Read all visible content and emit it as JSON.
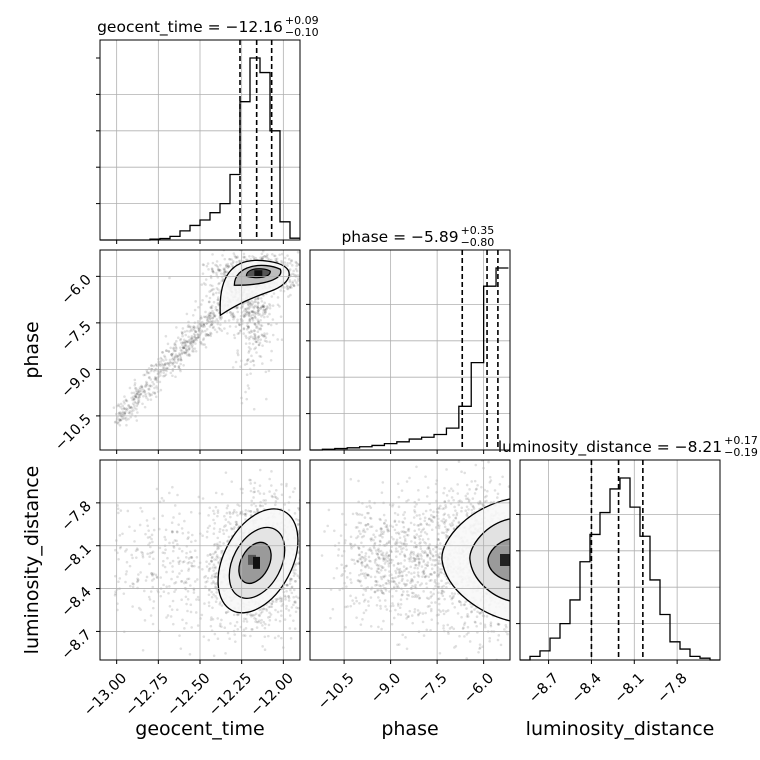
{
  "chart_data": {
    "type": "corner",
    "parameters": [
      "geocent_time",
      "phase",
      "luminosity_distance"
    ],
    "ranges": {
      "geocent_time": [
        -13.1,
        -11.9
      ],
      "phase": [
        -11.6,
        -5.15
      ],
      "luminosity_distance": [
        -8.9,
        -7.5
      ]
    },
    "ticks": {
      "geocent_time": [
        -13.0,
        -12.75,
        -12.5,
        -12.25,
        -12.0
      ],
      "geocent_time_labels": [
        "−13.00",
        "−12.75",
        "−12.50",
        "−12.25",
        "−12.00"
      ],
      "phase": [
        -10.5,
        -9.0,
        -7.5,
        -6.0
      ],
      "phase_labels": [
        "−10.5",
        "−9.0",
        "−7.5",
        "−6.0"
      ],
      "luminosity_distance": [
        -8.7,
        -8.4,
        -8.1,
        -7.8
      ],
      "luminosity_distance_labels": [
        "−8.7",
        "−8.4",
        "−8.1",
        "−7.8"
      ]
    },
    "titles": [
      {
        "param": "geocent_time",
        "text": "geocent_time = −12.16",
        "sup": "+0.09",
        "sub": "−0.10",
        "median": -12.16,
        "lo": -12.26,
        "hi": -12.07
      },
      {
        "param": "phase",
        "text": "phase = −5.89",
        "sup": "+0.35",
        "sub": "−0.80",
        "median": -5.89,
        "lo": -6.69,
        "hi": -5.54
      },
      {
        "param": "luminosity_distance",
        "text": "luminosity_distance = −8.21",
        "sup": "+0.17",
        "sub": "−0.19",
        "median": -8.21,
        "lo": -8.4,
        "hi": -8.04
      }
    ],
    "histograms": {
      "geocent_time": {
        "bin_edges": [
          -13.1,
          -13.04,
          -12.98,
          -12.92,
          -12.86,
          -12.8,
          -12.74,
          -12.68,
          -12.62,
          -12.56,
          -12.5,
          -12.44,
          -12.38,
          -12.32,
          -12.26,
          -12.2,
          -12.14,
          -12.08,
          -12.02,
          -11.96,
          -11.9
        ],
        "counts": [
          0,
          0,
          0,
          0,
          0,
          0.005,
          0.008,
          0.02,
          0.05,
          0.08,
          0.11,
          0.15,
          0.2,
          0.36,
          0.76,
          1.0,
          0.92,
          0.6,
          0.1,
          0.01
        ]
      },
      "phase": {
        "bin_edges": [
          -11.6,
          -11.2,
          -10.8,
          -10.4,
          -10.0,
          -9.6,
          -9.2,
          -8.8,
          -8.4,
          -8.0,
          -7.6,
          -7.2,
          -6.8,
          -6.4,
          -6.0,
          -5.6,
          -5.2
        ],
        "counts": [
          0,
          0.004,
          0.008,
          0.012,
          0.018,
          0.025,
          0.035,
          0.045,
          0.06,
          0.07,
          0.085,
          0.12,
          0.24,
          0.48,
          0.9,
          1.0
        ]
      },
      "luminosity_distance": {
        "bin_edges": [
          -8.9,
          -8.83,
          -8.76,
          -8.69,
          -8.62,
          -8.55,
          -8.48,
          -8.41,
          -8.34,
          -8.27,
          -8.2,
          -8.13,
          -8.06,
          -7.99,
          -7.92,
          -7.85,
          -7.78,
          -7.71,
          -7.64,
          -7.57,
          -7.5
        ],
        "counts": [
          0,
          0.02,
          0.05,
          0.12,
          0.2,
          0.33,
          0.54,
          0.69,
          0.81,
          0.94,
          1.0,
          0.84,
          0.68,
          0.44,
          0.25,
          0.1,
          0.06,
          0.02,
          0.01,
          0
        ]
      }
    },
    "credible_intervals": {
      "geocent_time": [
        -12.26,
        -12.16,
        -12.07
      ],
      "phase": [
        -6.69,
        -5.89,
        -5.54
      ],
      "luminosity_distance": [
        -8.4,
        -8.21,
        -8.04
      ]
    },
    "scatter_2d": {
      "geocent_time_vs_phase": {
        "x_center": -12.15,
        "y_center": -5.9
      },
      "geocent_time_vs_luminosity_distance": {
        "x_center": -12.17,
        "y_center": -8.2
      },
      "phase_vs_luminosity_distance": {
        "x_center": -5.85,
        "y_center": -8.2
      }
    },
    "xlabels": [
      "geocent_time",
      "phase",
      "luminosity_distance"
    ],
    "ylabels": [
      "phase",
      "luminosity_distance"
    ]
  }
}
